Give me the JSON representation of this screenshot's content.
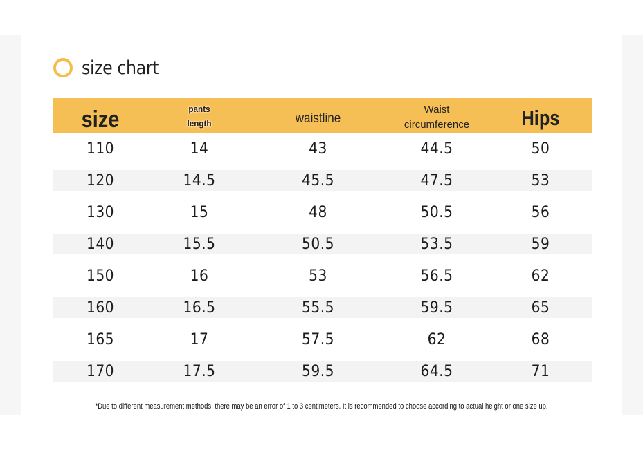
{
  "title": "size chart",
  "colors": {
    "header_bg": "#f6bf56",
    "ring": "#f5bd4c",
    "alt_row": "#f3f3f3"
  },
  "headers": {
    "size": "size",
    "pants_line1": "pants",
    "pants_line2": "length",
    "waistline": "waistline",
    "circ_line1": "Waist",
    "circ_line2": "circumference",
    "hips": "Hips"
  },
  "rows": [
    [
      "110",
      "14",
      "43",
      "44.5",
      "50"
    ],
    [
      "120",
      "14.5",
      "45.5",
      "47.5",
      "53"
    ],
    [
      "130",
      "15",
      "48",
      "50.5",
      "56"
    ],
    [
      "140",
      "15.5",
      "50.5",
      "53.5",
      "59"
    ],
    [
      "150",
      "16",
      "53",
      "56.5",
      "62"
    ],
    [
      "160",
      "16.5",
      "55.5",
      "59.5",
      "65"
    ],
    [
      "165",
      "17",
      "57.5",
      "62",
      "68"
    ],
    [
      "170",
      "17.5",
      "59.5",
      "64.5",
      "71"
    ]
  ],
  "footnote": "*Due to different measurement methods, there may be an error of 1 to 3 centimeters. It is recommended to choose according to actual height or one size up."
}
